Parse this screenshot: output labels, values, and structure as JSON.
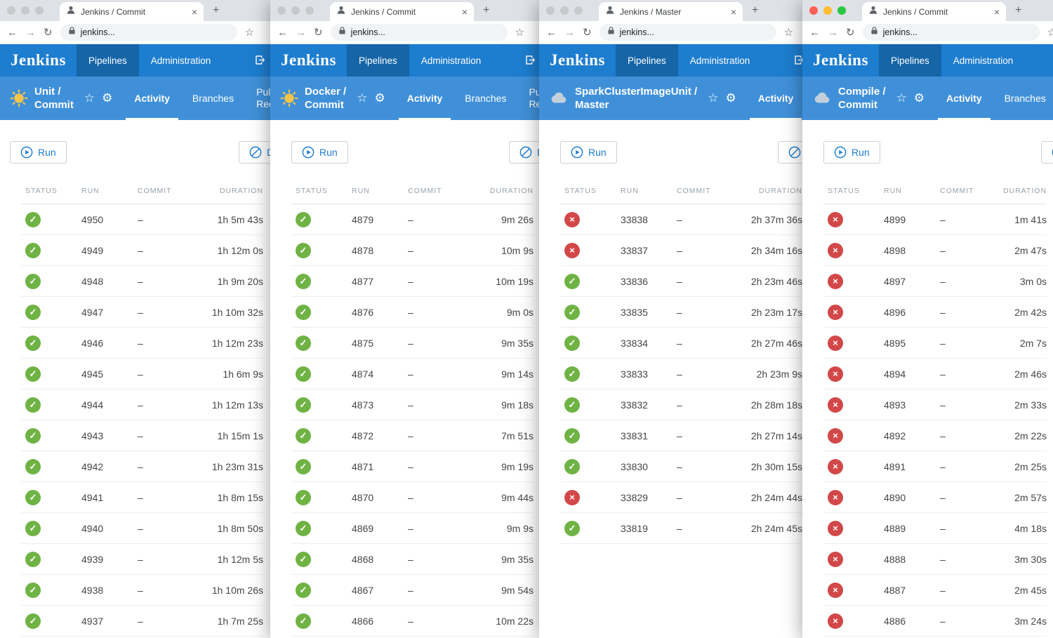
{
  "browser": {
    "url": "jenkins..."
  },
  "header": {
    "logo": "Jenkins",
    "pipelines": "Pipelines",
    "administration": "Administration"
  },
  "subtabs": {
    "activity": "Activity",
    "branches": "Branches",
    "pull_requests": "Pull Requests"
  },
  "actions": {
    "run": "Run",
    "disable": "Disable"
  },
  "table": {
    "columns": [
      "STATUS",
      "RUN",
      "COMMIT",
      "DURATION"
    ]
  },
  "colors": {
    "success": "#6fb344",
    "failure": "#d24848",
    "header_blue": "#1d7dcf",
    "subheader_blue": "#4090d9"
  },
  "windows": [
    {
      "tab_title": "Jenkins / Commit",
      "pipeline_line1": "Unit /",
      "pipeline_line2": "Commit",
      "weather": "sun",
      "runs": [
        {
          "status": "success",
          "run": "4950",
          "commit": "–",
          "duration": "1h 5m 43s"
        },
        {
          "status": "success",
          "run": "4949",
          "commit": "–",
          "duration": "1h 12m 0s"
        },
        {
          "status": "success",
          "run": "4948",
          "commit": "–",
          "duration": "1h 9m 20s"
        },
        {
          "status": "success",
          "run": "4947",
          "commit": "–",
          "duration": "1h 10m 32s"
        },
        {
          "status": "success",
          "run": "4946",
          "commit": "–",
          "duration": "1h 12m 23s"
        },
        {
          "status": "success",
          "run": "4945",
          "commit": "–",
          "duration": "1h 6m 9s"
        },
        {
          "status": "success",
          "run": "4944",
          "commit": "–",
          "duration": "1h 12m 13s"
        },
        {
          "status": "success",
          "run": "4943",
          "commit": "–",
          "duration": "1h 15m 1s"
        },
        {
          "status": "success",
          "run": "4942",
          "commit": "–",
          "duration": "1h 23m 31s"
        },
        {
          "status": "success",
          "run": "4941",
          "commit": "–",
          "duration": "1h 8m 15s"
        },
        {
          "status": "success",
          "run": "4940",
          "commit": "–",
          "duration": "1h 8m 50s"
        },
        {
          "status": "success",
          "run": "4939",
          "commit": "–",
          "duration": "1h 12m 5s"
        },
        {
          "status": "success",
          "run": "4938",
          "commit": "–",
          "duration": "1h 10m 26s"
        },
        {
          "status": "success",
          "run": "4937",
          "commit": "–",
          "duration": "1h 7m 25s"
        }
      ]
    },
    {
      "tab_title": "Jenkins / Commit",
      "pipeline_line1": "Docker /",
      "pipeline_line2": "Commit",
      "weather": "sun",
      "runs": [
        {
          "status": "success",
          "run": "4879",
          "commit": "–",
          "duration": "9m 26s"
        },
        {
          "status": "success",
          "run": "4878",
          "commit": "–",
          "duration": "10m 9s"
        },
        {
          "status": "success",
          "run": "4877",
          "commit": "–",
          "duration": "10m 19s"
        },
        {
          "status": "success",
          "run": "4876",
          "commit": "–",
          "duration": "9m 0s"
        },
        {
          "status": "success",
          "run": "4875",
          "commit": "–",
          "duration": "9m 35s"
        },
        {
          "status": "success",
          "run": "4874",
          "commit": "–",
          "duration": "9m 14s"
        },
        {
          "status": "success",
          "run": "4873",
          "commit": "–",
          "duration": "9m 18s"
        },
        {
          "status": "success",
          "run": "4872",
          "commit": "–",
          "duration": "7m 51s"
        },
        {
          "status": "success",
          "run": "4871",
          "commit": "–",
          "duration": "9m 19s"
        },
        {
          "status": "success",
          "run": "4870",
          "commit": "–",
          "duration": "9m 44s"
        },
        {
          "status": "success",
          "run": "4869",
          "commit": "–",
          "duration": "9m 9s"
        },
        {
          "status": "success",
          "run": "4868",
          "commit": "–",
          "duration": "9m 35s"
        },
        {
          "status": "success",
          "run": "4867",
          "commit": "–",
          "duration": "9m 54s"
        },
        {
          "status": "success",
          "run": "4866",
          "commit": "–",
          "duration": "10m 22s"
        }
      ]
    },
    {
      "tab_title": "Jenkins / Master",
      "pipeline_line1": "SparkClusterImageUnit /",
      "pipeline_line2": "Master",
      "weather": "cloud",
      "runs": [
        {
          "status": "failure",
          "run": "33838",
          "commit": "–",
          "duration": "2h 37m 36s"
        },
        {
          "status": "failure",
          "run": "33837",
          "commit": "–",
          "duration": "2h 34m 16s"
        },
        {
          "status": "success",
          "run": "33836",
          "commit": "–",
          "duration": "2h 23m 46s"
        },
        {
          "status": "success",
          "run": "33835",
          "commit": "–",
          "duration": "2h 23m 17s"
        },
        {
          "status": "success",
          "run": "33834",
          "commit": "–",
          "duration": "2h 27m 46s"
        },
        {
          "status": "success",
          "run": "33833",
          "commit": "–",
          "duration": "2h 23m 9s"
        },
        {
          "status": "success",
          "run": "33832",
          "commit": "–",
          "duration": "2h 28m 18s"
        },
        {
          "status": "success",
          "run": "33831",
          "commit": "–",
          "duration": "2h 27m 14s"
        },
        {
          "status": "success",
          "run": "33830",
          "commit": "–",
          "duration": "2h 30m 15s"
        },
        {
          "status": "failure",
          "run": "33829",
          "commit": "–",
          "duration": "2h 24m 44s"
        },
        {
          "status": "success",
          "run": "33819",
          "commit": "–",
          "duration": "2h 24m 45s"
        }
      ]
    },
    {
      "tab_title": "Jenkins / Commit",
      "pipeline_line1": "Compile /",
      "pipeline_line2": "Commit",
      "weather": "cloud",
      "runs": [
        {
          "status": "failure",
          "run": "4899",
          "commit": "–",
          "duration": "1m 41s"
        },
        {
          "status": "failure",
          "run": "4898",
          "commit": "–",
          "duration": "2m 47s"
        },
        {
          "status": "failure",
          "run": "4897",
          "commit": "–",
          "duration": "3m 0s"
        },
        {
          "status": "failure",
          "run": "4896",
          "commit": "–",
          "duration": "2m 42s"
        },
        {
          "status": "failure",
          "run": "4895",
          "commit": "–",
          "duration": "2m 7s"
        },
        {
          "status": "failure",
          "run": "4894",
          "commit": "–",
          "duration": "2m 46s"
        },
        {
          "status": "failure",
          "run": "4893",
          "commit": "–",
          "duration": "2m 33s"
        },
        {
          "status": "failure",
          "run": "4892",
          "commit": "–",
          "duration": "2m 22s"
        },
        {
          "status": "failure",
          "run": "4891",
          "commit": "–",
          "duration": "2m 25s"
        },
        {
          "status": "failure",
          "run": "4890",
          "commit": "–",
          "duration": "2m 57s"
        },
        {
          "status": "failure",
          "run": "4889",
          "commit": "–",
          "duration": "4m 18s"
        },
        {
          "status": "failure",
          "run": "4888",
          "commit": "–",
          "duration": "3m 30s"
        },
        {
          "status": "failure",
          "run": "4887",
          "commit": "–",
          "duration": "2m 45s"
        },
        {
          "status": "failure",
          "run": "4886",
          "commit": "–",
          "duration": "3m 24s"
        }
      ]
    }
  ]
}
